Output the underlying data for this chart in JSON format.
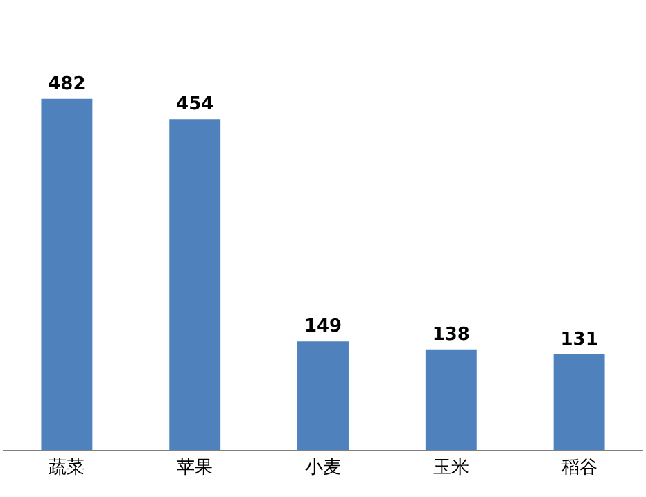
{
  "chart_data": {
    "type": "bar",
    "categories": [
      "蔬菜",
      "苹果",
      "小麦",
      "玉米",
      "稻谷"
    ],
    "values": [
      482,
      454,
      149,
      138,
      131
    ],
    "color": "#4f81bd",
    "data_labels": true,
    "tick_labels": "x"
  }
}
